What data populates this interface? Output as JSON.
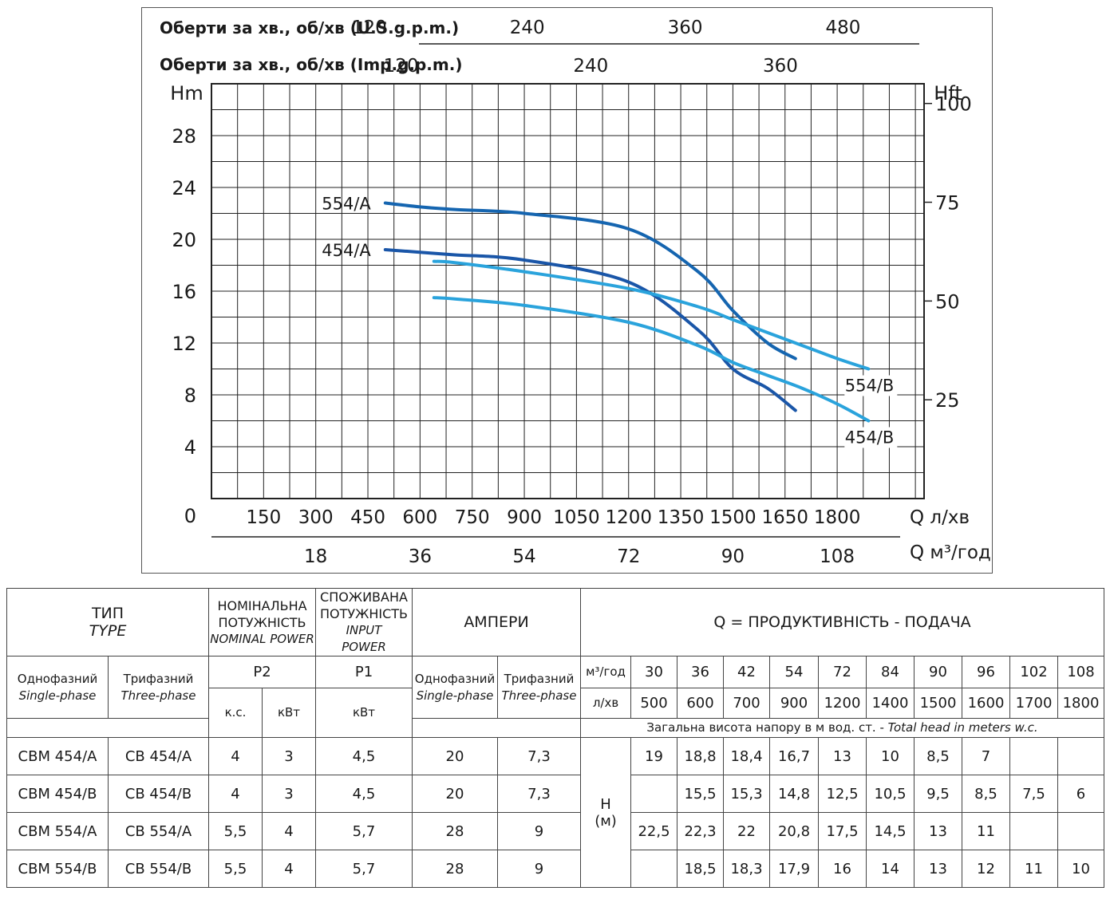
{
  "chart_data": {
    "type": "line",
    "top_axes": [
      {
        "label": "Оберти за хв., об/хв (U.S.g.p.m.)",
        "ticks": [
          "120",
          "240",
          "360",
          "480"
        ],
        "values": [
          120,
          240,
          360,
          480
        ]
      },
      {
        "label": "Оберти за хв., об/хв (Imp.g.p.m.)",
        "ticks": [
          "120",
          "240",
          "360"
        ],
        "values": [
          120,
          240,
          360
        ]
      }
    ],
    "ylabel_left": "Hm",
    "yticks_left": [
      "0",
      "4",
      "8",
      "12",
      "16",
      "20",
      "24",
      "28"
    ],
    "ylim": [
      0,
      32
    ],
    "ylabel_right": "Hft",
    "yticks_right": [
      "25",
      "50",
      "75",
      "100"
    ],
    "xlabel": "Q л/хв",
    "xticks": [
      "150",
      "300",
      "450",
      "600",
      "750",
      "900",
      "1050",
      "1200",
      "1350",
      "1500",
      "1650",
      "1800"
    ],
    "xlim": [
      0,
      2050
    ],
    "x2label": "Q м³/год",
    "x2ticks": [
      "18",
      "36",
      "54",
      "72",
      "90",
      "108"
    ],
    "series": [
      {
        "name": "554/A",
        "color": "#1565b0",
        "x": [
          500,
          600,
          700,
          900,
          1200,
          1400,
          1500,
          1600,
          1680
        ],
        "y": [
          22.8,
          22.5,
          22.3,
          22,
          20.8,
          17.5,
          14.5,
          12,
          10.8
        ]
      },
      {
        "name": "454/A",
        "color": "#1a56a8",
        "x": [
          500,
          600,
          700,
          900,
          1200,
          1400,
          1500,
          1600,
          1680
        ],
        "y": [
          19.2,
          19,
          18.8,
          18.4,
          16.7,
          13,
          10,
          8.5,
          6.8
        ]
      },
      {
        "name": "554/B",
        "color": "#2aa3dc",
        "x": [
          640,
          700,
          900,
          1200,
          1400,
          1500,
          1600,
          1700,
          1800,
          1890
        ],
        "y": [
          18.3,
          18.2,
          17.5,
          16.2,
          14.8,
          13.8,
          12.8,
          11.8,
          10.8,
          10
        ]
      },
      {
        "name": "454/B",
        "color": "#2aa3dc",
        "x": [
          640,
          700,
          900,
          1200,
          1400,
          1500,
          1600,
          1700,
          1800,
          1890
        ],
        "y": [
          15.5,
          15.4,
          14.9,
          13.6,
          11.8,
          10.5,
          9.5,
          8.5,
          7.3,
          6
        ]
      }
    ]
  },
  "table": {
    "type_title": "ТИП",
    "type_subtitle": "TYPE",
    "nominal_power": "НОМІНАЛЬНА ПОТУЖНІСТЬ",
    "nominal_power_en": "NOMINAL POWER",
    "input_power": "СПОЖИВАНА ПОТУЖНІСТЬ",
    "input_power_en": "INPUT POWER",
    "amperes": "АМПЕРИ",
    "q_title": "Q = ПРОДУКТИВНІСТЬ - ПОДАЧА",
    "single_phase": "Однофазний",
    "single_phase_en": "Single-phase",
    "three_phase": "Трифазний",
    "three_phase_en": "Three-phase",
    "p2": "P2",
    "p1": "P1",
    "hp": "к.с.",
    "kw": "кВт",
    "kw_p1": "кВт",
    "unit_m3h": "м³/год",
    "unit_lmin": "л/хв",
    "q_m3h": [
      "30",
      "36",
      "42",
      "54",
      "72",
      "84",
      "90",
      "96",
      "102",
      "108"
    ],
    "q_lmin": [
      "500",
      "600",
      "700",
      "900",
      "1200",
      "1400",
      "1500",
      "1600",
      "1700",
      "1800"
    ],
    "head_note": "Загальна висота напору в м вод. ст. - ",
    "head_note_en": "Total head in meters w.c.",
    "h_label": "H",
    "h_unit": "(м)",
    "rows": [
      {
        "single": "CBM 454/A",
        "three": "CB 454/A",
        "hp": "4",
        "kw": "3",
        "p1": "4,5",
        "a1": "20",
        "a3": "7,3",
        "h": [
          "19",
          "18,8",
          "18,4",
          "16,7",
          "13",
          "10",
          "8,5",
          "7",
          "",
          ""
        ]
      },
      {
        "single": "CBM 454/B",
        "three": "CB 454/B",
        "hp": "4",
        "kw": "3",
        "p1": "4,5",
        "a1": "20",
        "a3": "7,3",
        "h": [
          "",
          "15,5",
          "15,3",
          "14,8",
          "12,5",
          "10,5",
          "9,5",
          "8,5",
          "7,5",
          "6"
        ]
      },
      {
        "single": "CBM 554/A",
        "three": "CB 554/A",
        "hp": "5,5",
        "kw": "4",
        "p1": "5,7",
        "a1": "28",
        "a3": "9",
        "h": [
          "22,5",
          "22,3",
          "22",
          "20,8",
          "17,5",
          "14,5",
          "13",
          "11",
          "",
          ""
        ]
      },
      {
        "single": "CBM 554/B",
        "three": "CB 554/B",
        "hp": "5,5",
        "kw": "4",
        "p1": "5,7",
        "a1": "28",
        "a3": "9",
        "h": [
          "",
          "18,5",
          "18,3",
          "17,9",
          "16",
          "14",
          "13",
          "12",
          "11",
          "10"
        ]
      }
    ]
  }
}
